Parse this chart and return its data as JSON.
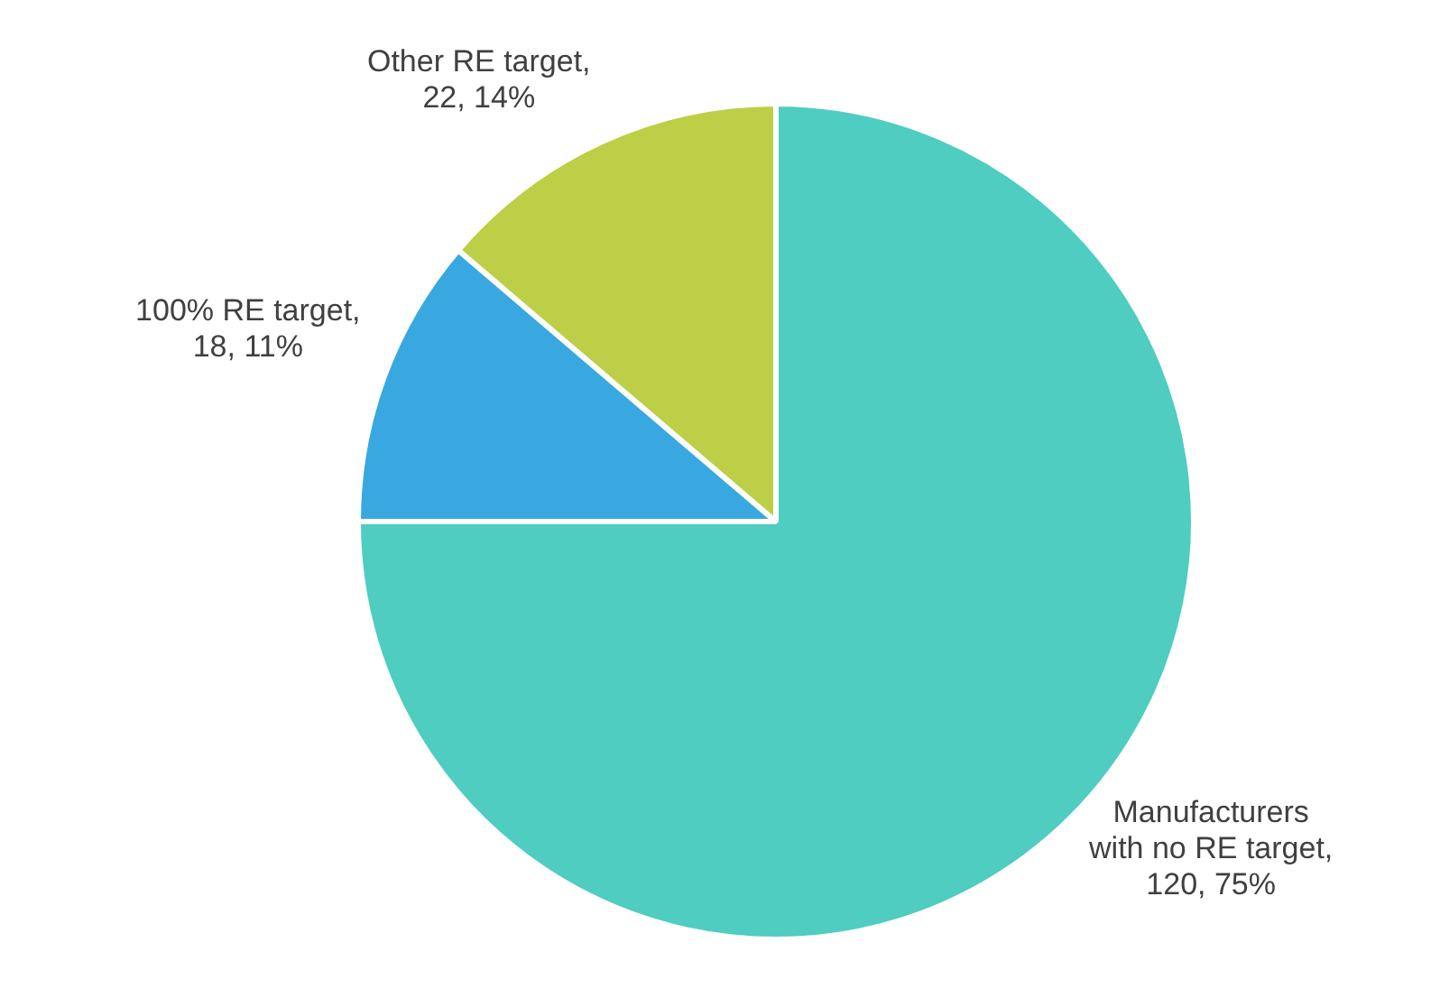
{
  "chart_data": {
    "type": "pie",
    "categories": [
      "Manufacturers with no RE target",
      "100% RE target",
      "Other RE target"
    ],
    "values": [
      120,
      18,
      22
    ],
    "colors": [
      "#4ecdc0",
      "#3aa8e0",
      "#bccf46"
    ],
    "value_labels": [
      ", 120, 75%",
      ", 18, 11%",
      ", 22, 14%"
    ],
    "legend": false
  }
}
